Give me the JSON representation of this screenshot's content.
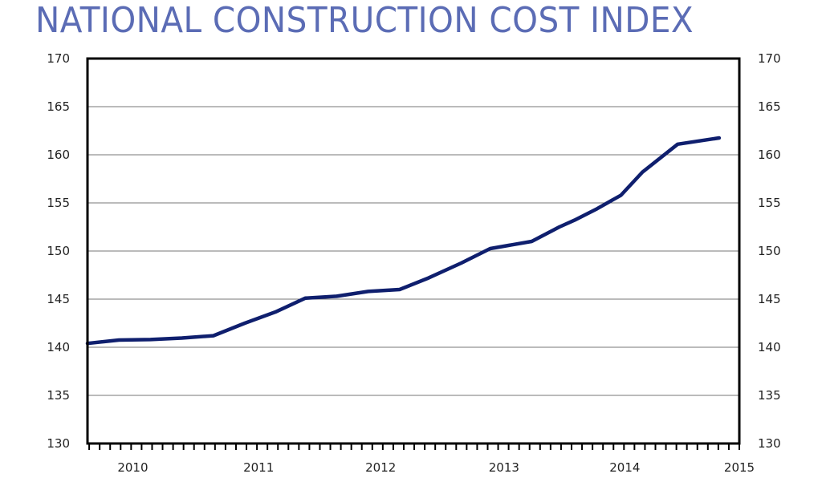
{
  "chart_data": {
    "type": "line",
    "title": "NATIONAL CONSTRUCTION COST INDEX",
    "xlabel": "",
    "ylabel": "",
    "ylim": [
      130,
      170
    ],
    "xlim": [
      2009.82,
      2015.0
    ],
    "yticks": [
      130,
      135,
      140,
      145,
      150,
      155,
      160,
      165,
      170
    ],
    "xtick_labels": [
      "2010",
      "2011",
      "2012",
      "2013",
      "2014",
      "2015"
    ],
    "xtick_positions": [
      2010.18,
      2011.18,
      2012.15,
      2013.13,
      2014.09,
      2015.0
    ],
    "minor_ticks_per_year": 12,
    "grid": true,
    "legend": "none",
    "series": [
      {
        "name": "National Construction Cost Index",
        "color": "#0f1f6e",
        "x": [
          2009.82,
          2010.07,
          2010.32,
          2010.57,
          2010.82,
          2011.07,
          2011.32,
          2011.55,
          2011.8,
          2012.05,
          2012.3,
          2012.53,
          2012.79,
          2013.02,
          2013.35,
          2013.57,
          2013.69,
          2013.87,
          2014.06,
          2014.23,
          2014.51,
          2014.84
        ],
        "values": [
          140.4,
          140.75,
          140.8,
          140.96,
          141.2,
          142.5,
          143.7,
          145.1,
          145.3,
          145.8,
          146.0,
          147.2,
          148.75,
          150.25,
          151.0,
          152.5,
          153.2,
          154.4,
          155.8,
          158.2,
          161.1,
          161.75
        ]
      }
    ]
  }
}
